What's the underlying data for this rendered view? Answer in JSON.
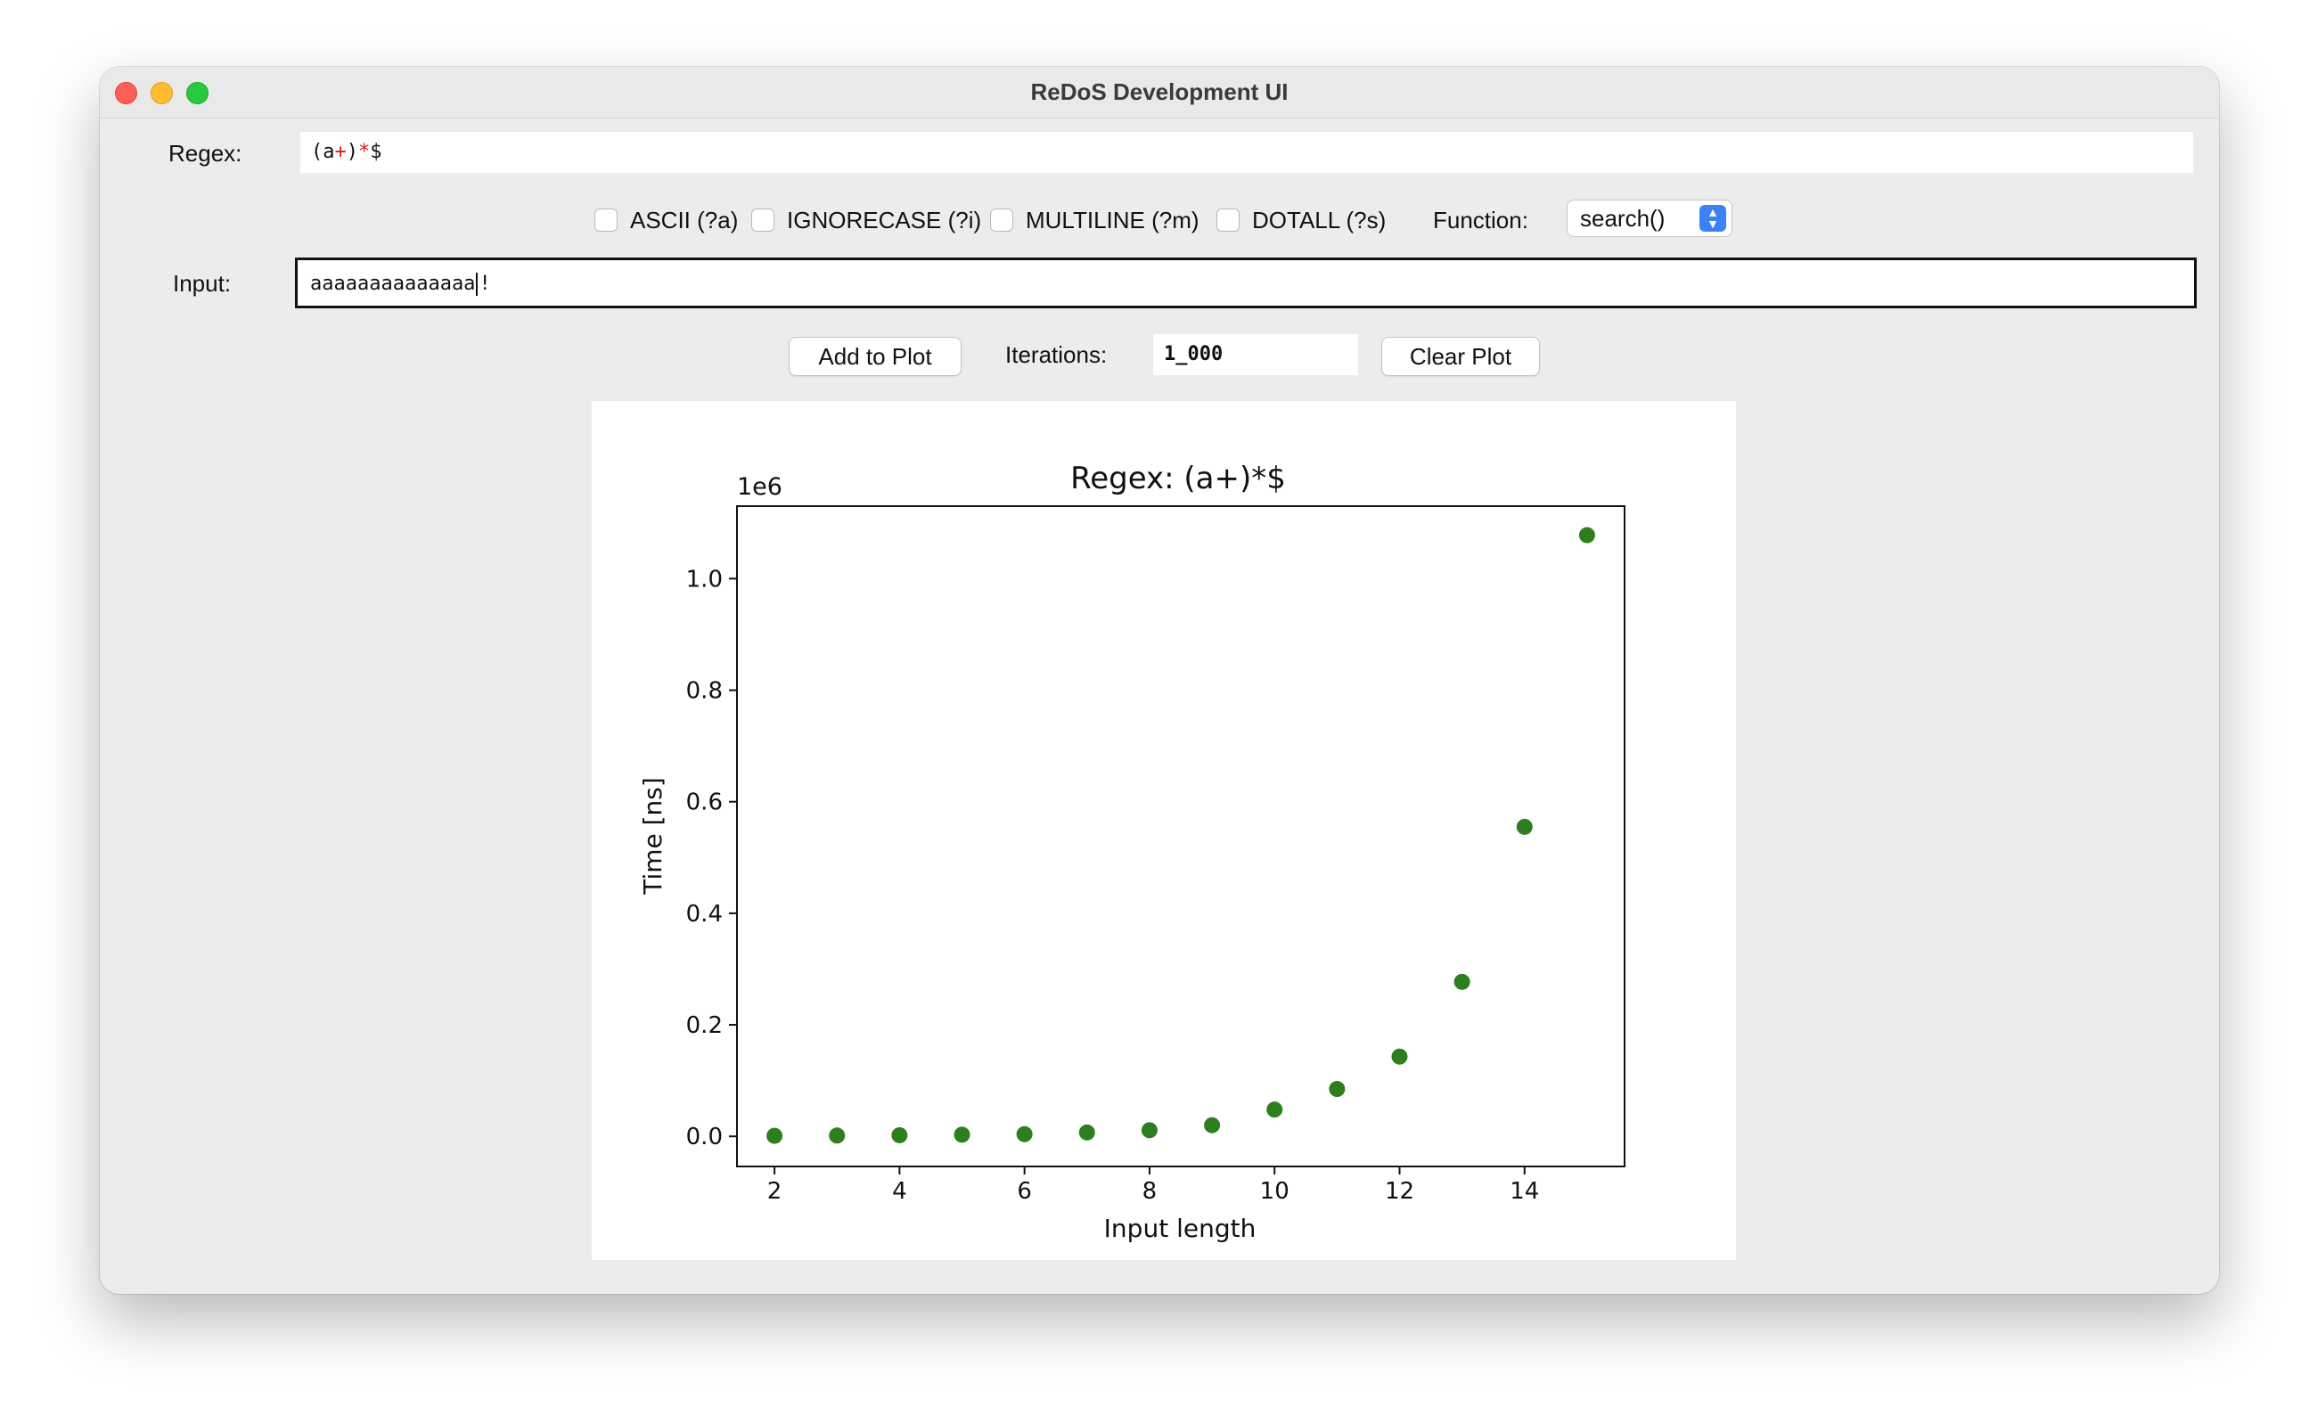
{
  "window": {
    "title": "ReDoS Development UI"
  },
  "regex": {
    "label": "Regex:",
    "parts": [
      {
        "text": "(a",
        "color": "#111111"
      },
      {
        "text": "+",
        "color": "#e01b1b"
      },
      {
        "text": ")",
        "color": "#111111"
      },
      {
        "text": "*",
        "color": "#e01b1b"
      },
      {
        "text": "$",
        "color": "#111111"
      }
    ]
  },
  "flags": [
    {
      "label": "ASCII (?a)",
      "checked": false
    },
    {
      "label": "IGNORECASE (?i)",
      "checked": false
    },
    {
      "label": "MULTILINE (?m)",
      "checked": false
    },
    {
      "label": "DOTALL (?s)",
      "checked": false
    }
  ],
  "function": {
    "label": "Function:",
    "selected": "search()",
    "icon": "up-down-chevron-icon"
  },
  "input": {
    "label": "Input:",
    "before_caret": "aaaaaaaaaaaaaa",
    "after_caret": "!"
  },
  "controls": {
    "add_to_plot": "Add to Plot",
    "iterations_label": "Iterations:",
    "iterations_value": "1_000",
    "clear_plot": "Clear Plot"
  },
  "chart_data": {
    "type": "scatter",
    "title": "Regex: (a+)*$",
    "xlabel": "Input length",
    "ylabel": "Time [ns]",
    "y_offset_text": "1e6",
    "x_ticks": [
      2,
      4,
      6,
      8,
      10,
      12,
      14
    ],
    "y_ticks": [
      "0.0",
      "0.2",
      "0.4",
      "0.6",
      "0.8",
      "1.0"
    ],
    "y_scale": 1000000,
    "xlim": [
      1.4,
      15.6
    ],
    "ylim": [
      -0.054,
      1.13
    ],
    "color": "#2e7d1f",
    "grid": false,
    "points": [
      {
        "x": 2,
        "y": 1000
      },
      {
        "x": 3,
        "y": 1500
      },
      {
        "x": 4,
        "y": 2000
      },
      {
        "x": 5,
        "y": 3000
      },
      {
        "x": 6,
        "y": 4000
      },
      {
        "x": 7,
        "y": 7000
      },
      {
        "x": 8,
        "y": 11000
      },
      {
        "x": 9,
        "y": 20000
      },
      {
        "x": 10,
        "y": 48000
      },
      {
        "x": 11,
        "y": 85000
      },
      {
        "x": 12,
        "y": 143000
      },
      {
        "x": 13,
        "y": 277000
      },
      {
        "x": 14,
        "y": 555000
      },
      {
        "x": 15,
        "y": 1078000
      }
    ]
  }
}
